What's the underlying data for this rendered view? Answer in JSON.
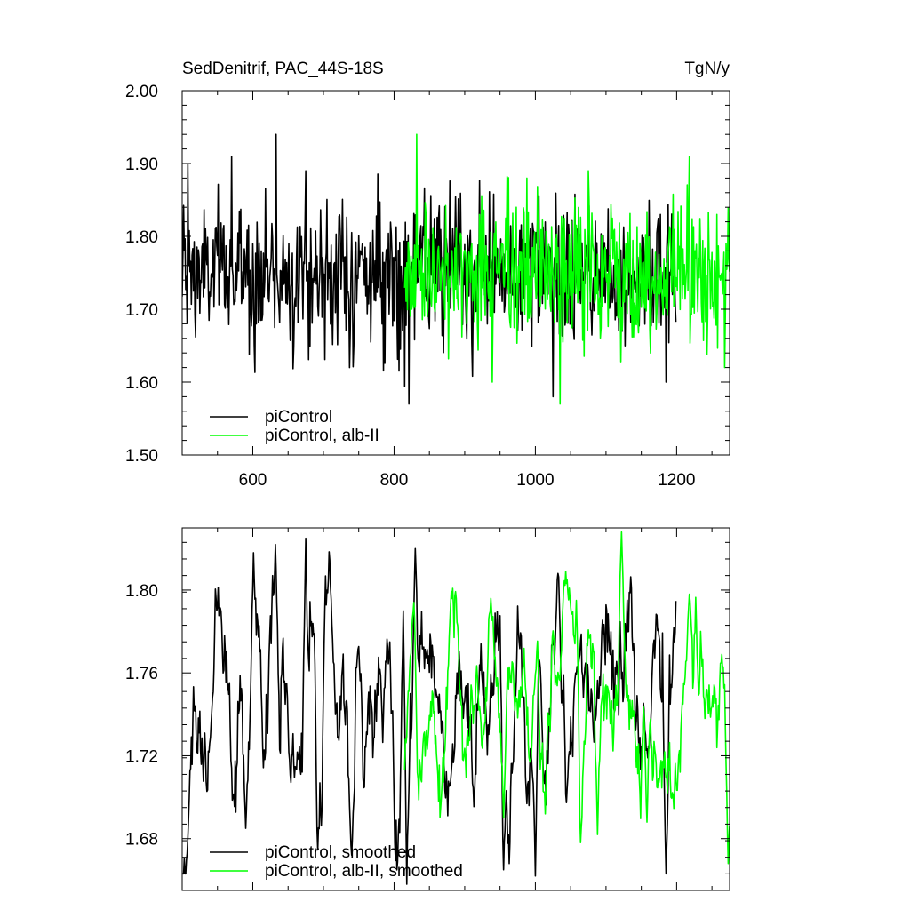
{
  "chart_data": [
    {
      "type": "line",
      "title": "SedDenitrif, PAC_44S-18S",
      "units": "TgN/y",
      "xlim": [
        500,
        1275
      ],
      "ylim": [
        1.5,
        2.0
      ],
      "x_ticks": [
        600,
        800,
        1000,
        1200
      ],
      "x_tick_labels": [
        "600",
        "800",
        "1000",
        "1200"
      ],
      "y_ticks": [
        1.5,
        1.6,
        1.7,
        1.8,
        1.9,
        2.0
      ],
      "y_tick_labels": [
        "1.50",
        "1.60",
        "1.70",
        "1.80",
        "1.90",
        "2.00"
      ],
      "legend_position": "bottom-left",
      "series": [
        {
          "name": "piControl",
          "color": "#000000",
          "x_start": 500,
          "x_end": 1199,
          "mean": 1.75,
          "amplitude": 0.055,
          "peaks": [
            [
              633,
              1.94
            ],
            [
              570,
              1.91
            ],
            [
              508,
              1.9
            ],
            [
              675,
              1.89
            ]
          ],
          "troughs": [
            [
              821,
              1.57
            ],
            [
              737,
              1.62
            ],
            [
              1025,
              1.58
            ],
            [
              1185,
              1.6
            ]
          ]
        },
        {
          "name": "piControl, alb-II",
          "color": "#00ff00",
          "x_start": 815,
          "x_end": 1275,
          "mean": 1.75,
          "amplitude": 0.055,
          "peaks": [
            [
              832,
              1.94
            ],
            [
              1218,
              1.91
            ],
            [
              1075,
              1.89
            ],
            [
              988,
              1.88
            ]
          ],
          "troughs": [
            [
              1035,
              1.57
            ],
            [
              939,
              1.6
            ],
            [
              1268,
              1.62
            ],
            [
              1163,
              1.64
            ]
          ]
        }
      ]
    },
    {
      "type": "line",
      "xlim": [
        500,
        1275
      ],
      "ylim": [
        1.655,
        1.83
      ],
      "x_ticks": [
        600,
        800,
        1000,
        1200
      ],
      "y_ticks": [
        1.68,
        1.72,
        1.76,
        1.8
      ],
      "y_tick_labels": [
        "1.68",
        "1.72",
        "1.76",
        "1.80"
      ],
      "legend_position": "bottom-left",
      "series": [
        {
          "name": "piControl, smoothed",
          "color": "#000000",
          "x_start": 500,
          "x_end": 1199,
          "mean": 1.745,
          "amplitude": 0.032,
          "peaks": [
            [
              601,
              1.818
            ],
            [
              632,
              1.822
            ],
            [
              675,
              1.825
            ],
            [
              830,
              1.82
            ],
            [
              1032,
              1.808
            ],
            [
              815,
              1.8
            ]
          ],
          "troughs": [
            [
              590,
              1.685
            ],
            [
              740,
              1.672
            ],
            [
              818,
              1.658
            ],
            [
              1000,
              1.662
            ],
            [
              1185,
              1.663
            ],
            [
              955,
              1.665
            ]
          ]
        },
        {
          "name": "piControl, alb-II, smoothed",
          "color": "#00ff00",
          "x_start": 815,
          "x_end": 1275,
          "mean": 1.745,
          "amplitude": 0.028,
          "peaks": [
            [
              1122,
              1.828
            ],
            [
              1218,
              1.798
            ],
            [
              828,
              1.794
            ],
            [
              1058,
              1.795
            ]
          ],
          "troughs": [
            [
              1273,
              1.668
            ],
            [
              1158,
              1.688
            ],
            [
              1088,
              1.682
            ],
            [
              955,
              1.69
            ]
          ]
        }
      ]
    }
  ]
}
